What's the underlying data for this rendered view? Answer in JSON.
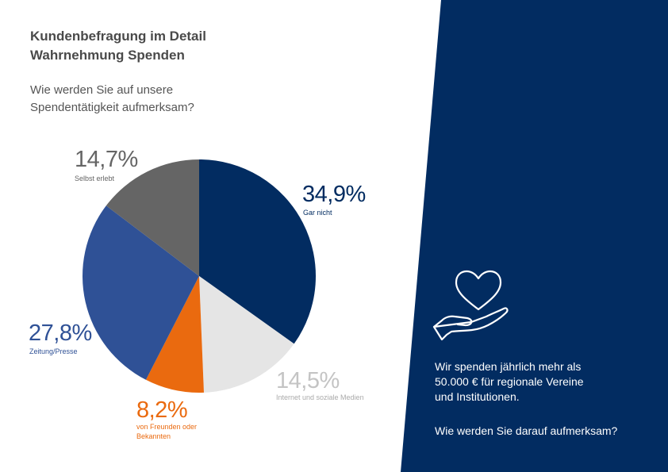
{
  "header": {
    "title_line1": "Kundenbefragung im Detail",
    "title_line2": "Wahrnehmung Spenden",
    "question_line1": "Wie werden Sie auf unsere",
    "question_line2": "Spendentätigkeit aufmerksam?"
  },
  "colors": {
    "navy": "#022c61",
    "blue": "#2f5196",
    "orange": "#ea6a0f",
    "light_gray": "#e5e5e5",
    "dark_gray": "#656565"
  },
  "chart_data": {
    "type": "pie",
    "start_angle_deg": 0,
    "direction": "clockwise",
    "slices": [
      {
        "label": "Gar nicht",
        "value": 34.9,
        "value_text": "34,9%",
        "color": "#022c61",
        "text_color": "#022c61"
      },
      {
        "label": "Internet und soziale Medien",
        "value": 14.5,
        "value_text": "14,5%",
        "color": "#e5e5e5",
        "text_color": "#c4c4c4"
      },
      {
        "label": "von Freunden oder Bekannten",
        "value": 8.2,
        "value_text": "8,2%",
        "color": "#ea6a0f",
        "text_color": "#ea6a0f"
      },
      {
        "label": "Zeitung/Presse",
        "value": 27.8,
        "value_text": "27,8%",
        "color": "#2f5196",
        "text_color": "#2f5196"
      },
      {
        "label": "Selbst erlebt",
        "value": 14.7,
        "value_text": "14,7%",
        "color": "#656565",
        "text_color": "#656565"
      }
    ]
  },
  "panel": {
    "icon": "heart-in-hand-icon",
    "statement_line1": "Wir spenden jährlich mehr als",
    "statement_line2": "50.000 € für regionale Vereine",
    "statement_line3": "und Institutionen.",
    "question": "Wie werden Sie darauf aufmerksam?"
  }
}
